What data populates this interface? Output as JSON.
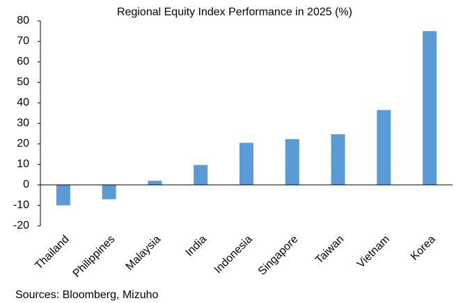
{
  "chart_data": {
    "type": "bar",
    "title": "Regional Equity Index Performance in 2025 (%)",
    "categories": [
      "Thailand",
      "Philippines",
      "Malaysia",
      "India",
      "Indonesia",
      "Singapore",
      "Taiwan",
      "Vietnam",
      "Korea"
    ],
    "values": [
      -10,
      -7,
      2,
      9.7,
      20.5,
      22.3,
      24.7,
      36.5,
      75
    ],
    "color": "#5b9bd5",
    "ylim": [
      -20,
      80
    ],
    "yticks": [
      -20,
      -10,
      0,
      10,
      20,
      30,
      40,
      50,
      60,
      70,
      80
    ],
    "grid": false,
    "source": "Sources: Bloomberg, Mizuho"
  }
}
